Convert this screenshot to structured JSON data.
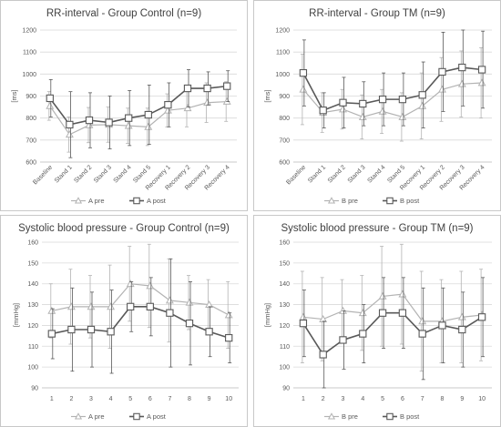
{
  "chart_data": [
    {
      "type": "line",
      "title": "RR-interval - Group Control (n=9)",
      "ylabel": "[ms]",
      "ylim": [
        600,
        1200
      ],
      "yticks": [
        600,
        700,
        800,
        900,
        1000,
        1100,
        1200
      ],
      "categories": [
        "Baseline",
        "Stand 1",
        "Stand 2",
        "Stand 3",
        "Stand 4",
        "Stand 5",
        "Recovery 1",
        "Recovery 2",
        "Recovery 3",
        "Recovery 4"
      ],
      "grid": true,
      "legend_position": "bottom",
      "series": [
        {
          "name": "A pre",
          "marker": "triangle",
          "color": "#b3b3b3",
          "values": [
            855,
            725,
            768,
            770,
            765,
            760,
            835,
            845,
            870,
            875
          ],
          "errors": [
            65,
            80,
            80,
            80,
            80,
            85,
            75,
            85,
            90,
            90
          ]
        },
        {
          "name": "A post",
          "marker": "square",
          "color": "#595959",
          "values": [
            890,
            770,
            790,
            780,
            800,
            815,
            860,
            935,
            935,
            945
          ],
          "errors": [
            85,
            150,
            125,
            120,
            125,
            135,
            100,
            85,
            75,
            70
          ]
        }
      ]
    },
    {
      "type": "line",
      "title": "RR-interval - Group TM (n=9)",
      "ylabel": "[ms]",
      "ylim": [
        600,
        1200
      ],
      "yticks": [
        600,
        700,
        800,
        900,
        1000,
        1100,
        1200
      ],
      "categories": [
        "Baseline",
        "Stand 1",
        "Stand 2",
        "Stand 3",
        "Stand 4",
        "Stand 5",
        "Recovery 1",
        "Recovery 2",
        "Recovery 3",
        "Recovery 4"
      ],
      "grid": true,
      "legend_position": "bottom",
      "series": [
        {
          "name": "B pre",
          "marker": "triangle",
          "color": "#b3b3b3",
          "values": [
            930,
            825,
            840,
            805,
            830,
            805,
            855,
            930,
            955,
            960
          ],
          "errors": [
            160,
            90,
            90,
            100,
            100,
            110,
            150,
            145,
            150,
            160
          ]
        },
        {
          "name": "B post",
          "marker": "square",
          "color": "#595959",
          "values": [
            1005,
            835,
            870,
            865,
            885,
            885,
            905,
            1010,
            1030,
            1020
          ],
          "errors": [
            150,
            80,
            115,
            100,
            120,
            120,
            150,
            180,
            175,
            175
          ]
        }
      ]
    },
    {
      "type": "line",
      "title": "Systolic blood pressure - Group Control (n=9)",
      "ylabel": "[mmHg]",
      "ylim": [
        90,
        160
      ],
      "yticks": [
        90,
        100,
        110,
        120,
        130,
        140,
        150,
        160
      ],
      "categories": [
        "1",
        "2",
        "3",
        "4",
        "5",
        "6",
        "7",
        "8",
        "9",
        "10"
      ],
      "grid": true,
      "legend_position": "bottom",
      "series": [
        {
          "name": "A pre",
          "marker": "triangle",
          "color": "#b3b3b3",
          "values": [
            127,
            129,
            129,
            129,
            140,
            139,
            132,
            131,
            130,
            125
          ],
          "errors": [
            13,
            18,
            15,
            20,
            18,
            20,
            20,
            13,
            12,
            16
          ]
        },
        {
          "name": "A post",
          "marker": "square",
          "color": "#595959",
          "values": [
            116,
            118,
            118,
            117,
            129,
            129,
            126,
            121,
            117,
            114
          ],
          "errors": [
            12,
            20,
            18,
            20,
            12,
            14,
            26,
            20,
            12,
            12
          ]
        }
      ]
    },
    {
      "type": "line",
      "title": "Systolic blood pressure - Group TM (n=9)",
      "ylabel": "[mmHg]",
      "ylim": [
        90,
        160
      ],
      "yticks": [
        90,
        100,
        110,
        120,
        130,
        140,
        150,
        160
      ],
      "categories": [
        "1",
        "2",
        "3",
        "4",
        "5",
        "6",
        "7",
        "8",
        "9",
        "10"
      ],
      "grid": true,
      "legend_position": "bottom",
      "series": [
        {
          "name": "B pre",
          "marker": "triangle",
          "color": "#b3b3b3",
          "values": [
            124,
            123,
            127,
            126,
            134,
            135,
            122,
            122,
            124,
            125
          ],
          "errors": [
            22,
            20,
            15,
            18,
            24,
            24,
            24,
            20,
            22,
            22
          ]
        },
        {
          "name": "B post",
          "marker": "square",
          "color": "#595959",
          "values": [
            121,
            106,
            113,
            116,
            126,
            126,
            116,
            120,
            118,
            124
          ],
          "errors": [
            16,
            16,
            14,
            14,
            17,
            17,
            22,
            18,
            18,
            19
          ]
        }
      ]
    }
  ]
}
